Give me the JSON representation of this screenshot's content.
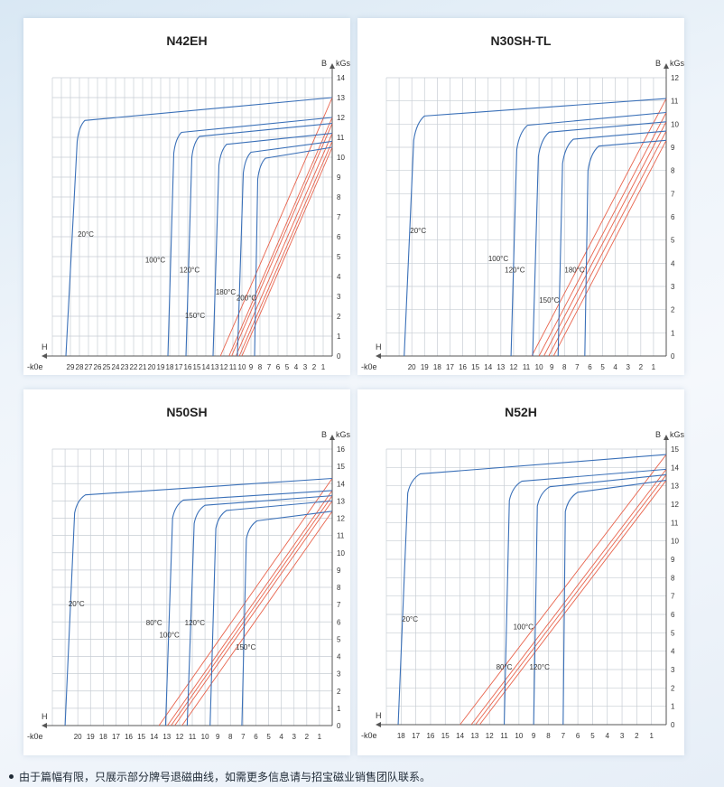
{
  "colors": {
    "blue_curve": "#3a70b8",
    "red_line": "#e8634c",
    "grid": "#c7cdd4"
  },
  "footnote": "由于篇幅有限，只展示部分牌号退磁曲线，如需更多信息请与招宝磁业销售团队联系。",
  "chart_data": [
    {
      "type": "line",
      "title": "N42EH",
      "x_unit": "-k0e",
      "x_axis_letter": "H",
      "y_unit": "kGs",
      "y_axis_letter": "B",
      "xlim": [
        0,
        31
      ],
      "ylim": [
        0,
        14
      ],
      "x_ticks": [
        29,
        28,
        27,
        26,
        25,
        24,
        23,
        22,
        21,
        20,
        19,
        18,
        17,
        16,
        15,
        14,
        13,
        12,
        11,
        10,
        9,
        8,
        7,
        6,
        5,
        4,
        3,
        2,
        1
      ],
      "y_ticks": [
        0,
        1,
        2,
        3,
        4,
        5,
        6,
        7,
        8,
        9,
        10,
        11,
        12,
        13,
        14
      ],
      "annotations": [
        {
          "text": "20°C",
          "x": 27.3,
          "y": 6.0
        },
        {
          "text": "100°C",
          "x": 19.6,
          "y": 4.7
        },
        {
          "text": "120°C",
          "x": 15.8,
          "y": 4.2
        },
        {
          "text": "180°C",
          "x": 11.8,
          "y": 3.1
        },
        {
          "text": "150°C",
          "x": 15.2,
          "y": 1.9
        },
        {
          "text": "200°C",
          "x": 9.5,
          "y": 2.8
        }
      ],
      "curves": [
        {
          "name": "20°C",
          "hcj": 29.5,
          "br": 13.0,
          "knee_h": 28.0,
          "knee_b": 11.5
        },
        {
          "name": "100°C",
          "hcj": 18.2,
          "br": 12.0,
          "knee_h": 17.3,
          "knee_b": 10.9
        },
        {
          "name": "120°C",
          "hcj": 16.2,
          "br": 11.7,
          "knee_h": 15.3,
          "knee_b": 10.7
        },
        {
          "name": "150°C",
          "hcj": 13.2,
          "br": 11.2,
          "knee_h": 12.3,
          "knee_b": 10.3
        },
        {
          "name": "180°C",
          "hcj": 10.5,
          "br": 10.8,
          "knee_h": 9.6,
          "knee_b": 9.9
        },
        {
          "name": "200°C",
          "hcj": 8.6,
          "br": 10.5,
          "knee_h": 8.0,
          "knee_b": 9.6
        }
      ]
    },
    {
      "type": "line",
      "title": "N30SH-TL",
      "x_unit": "-k0e",
      "x_axis_letter": "H",
      "y_unit": "kGs",
      "y_axis_letter": "B",
      "xlim": [
        0,
        22
      ],
      "ylim": [
        0,
        12
      ],
      "x_ticks": [
        20,
        19,
        18,
        17,
        16,
        15,
        14,
        13,
        12,
        11,
        10,
        9,
        8,
        7,
        6,
        5,
        4,
        3,
        2,
        1
      ],
      "y_ticks": [
        0,
        1,
        2,
        3,
        4,
        5,
        6,
        7,
        8,
        9,
        10,
        11,
        12
      ],
      "annotations": [
        {
          "text": "20°C",
          "x": 19.5,
          "y": 5.3
        },
        {
          "text": "100°C",
          "x": 13.2,
          "y": 4.1
        },
        {
          "text": "120°C",
          "x": 11.9,
          "y": 3.6
        },
        {
          "text": "180°C",
          "x": 7.2,
          "y": 3.6
        },
        {
          "text": "150°C",
          "x": 9.2,
          "y": 2.3
        }
      ],
      "curves": [
        {
          "name": "20°C",
          "hcj": 20.6,
          "br": 11.1,
          "knee_h": 19.6,
          "knee_b": 10.0
        },
        {
          "name": "100°C",
          "hcj": 12.2,
          "br": 10.5,
          "knee_h": 11.5,
          "knee_b": 9.6
        },
        {
          "name": "120°C",
          "hcj": 10.5,
          "br": 10.1,
          "knee_h": 9.8,
          "knee_b": 9.3
        },
        {
          "name": "150°C",
          "hcj": 8.5,
          "br": 9.7,
          "knee_h": 7.9,
          "knee_b": 9.0
        },
        {
          "name": "180°C",
          "hcj": 6.4,
          "br": 9.3,
          "knee_h": 5.9,
          "knee_b": 8.7
        }
      ]
    },
    {
      "type": "line",
      "title": "N50SH",
      "x_unit": "-k0e",
      "x_axis_letter": "H",
      "y_unit": "kGs",
      "y_axis_letter": "B",
      "xlim": [
        0,
        22
      ],
      "ylim": [
        0,
        16
      ],
      "x_ticks": [
        20,
        19,
        18,
        17,
        16,
        15,
        14,
        13,
        12,
        11,
        10,
        9,
        8,
        7,
        6,
        5,
        4,
        3,
        2,
        1
      ],
      "y_ticks": [
        0,
        1,
        2,
        3,
        4,
        5,
        6,
        7,
        8,
        9,
        10,
        11,
        12,
        13,
        14,
        15,
        16
      ],
      "annotations": [
        {
          "text": "20°C",
          "x": 20.1,
          "y": 6.9
        },
        {
          "text": "80°C",
          "x": 14.0,
          "y": 5.8
        },
        {
          "text": "100°C",
          "x": 12.8,
          "y": 5.1
        },
        {
          "text": "120°C",
          "x": 10.8,
          "y": 5.8
        },
        {
          "text": "150°C",
          "x": 6.8,
          "y": 4.4
        }
      ],
      "curves": [
        {
          "name": "20°C",
          "hcj": 21.0,
          "br": 14.3,
          "knee_h": 20.0,
          "knee_b": 13.0
        },
        {
          "name": "80°C",
          "hcj": 13.1,
          "br": 13.6,
          "knee_h": 12.3,
          "knee_b": 12.7
        },
        {
          "name": "100°C",
          "hcj": 11.4,
          "br": 13.3,
          "knee_h": 10.6,
          "knee_b": 12.4
        },
        {
          "name": "120°C",
          "hcj": 9.6,
          "br": 13.0,
          "knee_h": 8.9,
          "knee_b": 12.1
        },
        {
          "name": "150°C",
          "hcj": 7.1,
          "br": 12.4,
          "knee_h": 6.5,
          "knee_b": 11.5
        }
      ]
    },
    {
      "type": "line",
      "title": "N52H",
      "x_unit": "-k0e",
      "x_axis_letter": "H",
      "y_unit": "kGs",
      "y_axis_letter": "B",
      "xlim": [
        0,
        19
      ],
      "ylim": [
        0,
        15
      ],
      "x_ticks": [
        18,
        17,
        16,
        15,
        14,
        13,
        12,
        11,
        10,
        9,
        8,
        7,
        6,
        5,
        4,
        3,
        2,
        1
      ],
      "y_ticks": [
        0,
        1,
        2,
        3,
        4,
        5,
        6,
        7,
        8,
        9,
        10,
        11,
        12,
        13,
        14,
        15
      ],
      "annotations": [
        {
          "text": "20°C",
          "x": 17.4,
          "y": 5.6
        },
        {
          "text": "100°C",
          "x": 9.7,
          "y": 5.2
        },
        {
          "text": "80°C",
          "x": 11.0,
          "y": 3.0
        },
        {
          "text": "120°C",
          "x": 8.6,
          "y": 3.0
        }
      ],
      "curves": [
        {
          "name": "20°C",
          "hcj": 18.2,
          "br": 14.7,
          "knee_h": 17.3,
          "knee_b": 13.3
        },
        {
          "name": "80°C",
          "hcj": 11.0,
          "br": 13.9,
          "knee_h": 10.4,
          "knee_b": 12.9
        },
        {
          "name": "100°C",
          "hcj": 9.0,
          "br": 13.6,
          "knee_h": 8.5,
          "knee_b": 12.6
        },
        {
          "name": "120°C",
          "hcj": 7.0,
          "br": 13.3,
          "knee_h": 6.6,
          "knee_b": 12.3
        }
      ]
    }
  ]
}
